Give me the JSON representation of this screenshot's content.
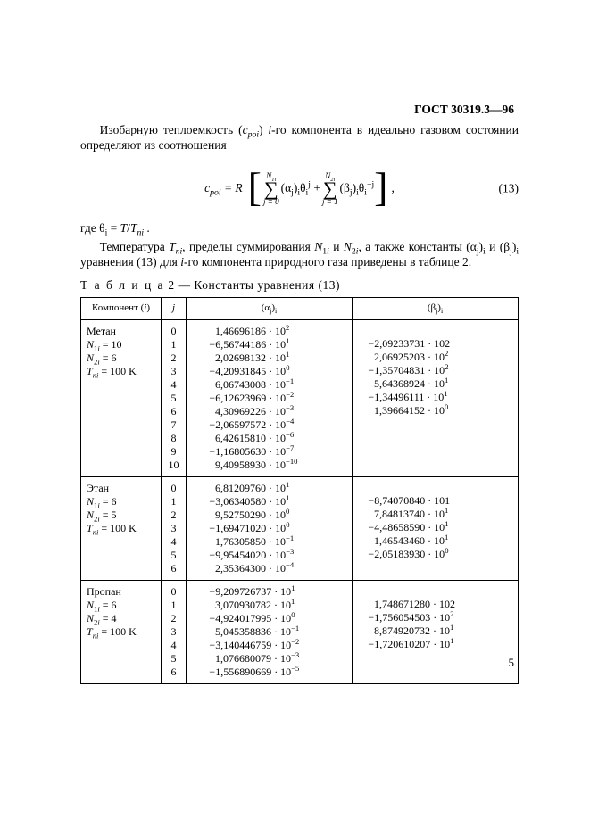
{
  "doc_id": "ГОСТ 30319.3—96",
  "para1_html": "Изобарную теплоемкость (<i>c<sub>poi</sub></i>) <i>i</i>-го компонента в идеально газовом состоянии определяют из соотношения",
  "equation": {
    "lhs": "c<sub>poi</sub> = R",
    "sum1_top": "N<sub>1i</sub>",
    "sum1_bot": "j = 0",
    "term1": "(α<sub>j</sub>)<sub>i</sub>θ<sub>i</sub><sup>j</sup> +",
    "sum2_top": "N<sub>2i</sub>",
    "sum2_bot": "j = 1",
    "term2": "(β<sub>j</sub>)<sub>i</sub>θ<sub>i</sub><sup>−j</sup>",
    "number": "(13)"
  },
  "theta_line": "где θ<sub>i</sub> = <i>T</i>/<i>T<sub>ni</sub></i> .",
  "para2_html": "Температура <i>T<sub>ni</sub></i>, пределы суммирования <i>N</i><sub>1<i>i</i></sub> и <i>N</i><sub>2<i>i</i></sub>, а также константы (α<sub>j</sub>)<sub>i</sub> и (β<sub>j</sub>)<sub>i</sub> уравнения (13) для <i>i</i>-го компонента природного газа приведены в таблице 2.",
  "table_caption_label": "Т а б л и ц а",
  "table_caption_rest": " 2 — Константы уравнения (13)",
  "headers": {
    "comp": "Компонент (<i>i</i>)",
    "j": "<i>j</i>",
    "alpha": "(α<sub>j</sub>)<sub>i</sub>",
    "beta": "(β<sub>j</sub>)<sub>i</sub>"
  },
  "rows": [
    {
      "comp": [
        "Метан",
        "<i>N</i><sub>1<i>i</i></sub> = 10",
        "<i>N</i><sub>2<i>i</i></sub> = 6",
        "<i>T<sub>ni</sub></i> = 100 K"
      ],
      "j": [
        "0",
        "1",
        "2",
        "3",
        "4",
        "5",
        "6",
        "7",
        "8",
        "9",
        "10"
      ],
      "alpha": [
        {
          "s": "",
          "m": "1,46696186",
          "e": "2"
        },
        {
          "s": "−",
          "m": "6,56744186",
          "e": "1"
        },
        {
          "s": "",
          "m": "2,02698132",
          "e": "1"
        },
        {
          "s": "−",
          "m": "4,20931845",
          "e": "0"
        },
        {
          "s": "",
          "m": "6,06743008",
          "e": "−1"
        },
        {
          "s": "−",
          "m": "6,12623969",
          "e": "−2"
        },
        {
          "s": "",
          "m": "4,30969226",
          "e": "−3"
        },
        {
          "s": "−",
          "m": "2,06597572",
          "e": "−4"
        },
        {
          "s": "",
          "m": "6,42615810",
          "e": "−6"
        },
        {
          "s": "−",
          "m": "1,16805630",
          "e": "−7"
        },
        {
          "s": "",
          "m": "9,40958930",
          "e": "−10"
        }
      ],
      "beta": [
        {
          "s": "−",
          "m": "2,09233731",
          "e": "102",
          "raw": true
        },
        {
          "s": "",
          "m": "2,06925203",
          "e": "2"
        },
        {
          "s": "−",
          "m": "1,35704831",
          "e": "2"
        },
        {
          "s": "",
          "m": "5,64368924",
          "e": "1"
        },
        {
          "s": "−",
          "m": "1,34496111",
          "e": "1"
        },
        {
          "s": "",
          "m": "1,39664152",
          "e": "0"
        }
      ]
    },
    {
      "comp": [
        "Этан",
        "<i>N</i><sub>1<i>i</i></sub> = 6",
        "<i>N</i><sub>2<i>i</i></sub> = 5",
        "<i>T<sub>ni</sub></i> = 100 K"
      ],
      "j": [
        "0",
        "1",
        "2",
        "3",
        "4",
        "5",
        "6"
      ],
      "alpha": [
        {
          "s": "",
          "m": "6,81209760",
          "e": "1"
        },
        {
          "s": "−",
          "m": "3,06340580",
          "e": "1"
        },
        {
          "s": "",
          "m": "9,52750290",
          "e": "0"
        },
        {
          "s": "−",
          "m": "1,69471020",
          "e": "0"
        },
        {
          "s": "",
          "m": "1,76305850",
          "e": "−1"
        },
        {
          "s": "−",
          "m": "9,95454020",
          "e": "−3"
        },
        {
          "s": "",
          "m": "2,35364300",
          "e": "−4"
        }
      ],
      "beta": [
        {
          "s": "−",
          "m": "8,74070840",
          "e": "101",
          "raw": true
        },
        {
          "s": "",
          "m": "7,84813740",
          "e": "1"
        },
        {
          "s": "−",
          "m": "4,48658590",
          "e": "1"
        },
        {
          "s": "",
          "m": "1,46543460",
          "e": "1"
        },
        {
          "s": "−",
          "m": "2,05183930",
          "e": "0"
        }
      ]
    },
    {
      "comp": [
        "Пропан",
        "<i>N</i><sub>1<i>i</i></sub> = 6",
        "<i>N</i><sub>2<i>i</i></sub> = 4",
        "<i>T<sub>ni</sub></i> = 100 K"
      ],
      "j": [
        "0",
        "1",
        "2",
        "3",
        "4",
        "5",
        "6"
      ],
      "alpha": [
        {
          "s": "−",
          "m": "9,209726737",
          "e": "1"
        },
        {
          "s": "",
          "m": "3,070930782",
          "e": "1"
        },
        {
          "s": "−",
          "m": "4,924017995",
          "e": "0"
        },
        {
          "s": "",
          "m": "5,045358836",
          "e": "−1"
        },
        {
          "s": "−",
          "m": "3,140446759",
          "e": "−2"
        },
        {
          "s": "",
          "m": "1,076680079",
          "e": "−3"
        },
        {
          "s": "−",
          "m": "1,556890669",
          "e": "−5"
        }
      ],
      "beta": [
        {
          "s": "",
          "m": "1,748671280",
          "e": "102",
          "raw": true
        },
        {
          "s": "−",
          "m": "1,756054503",
          "e": "2"
        },
        {
          "s": "",
          "m": "8,874920732",
          "e": "1"
        },
        {
          "s": "−",
          "m": "1,720610207",
          "e": "1"
        }
      ]
    }
  ],
  "page_number": "5"
}
